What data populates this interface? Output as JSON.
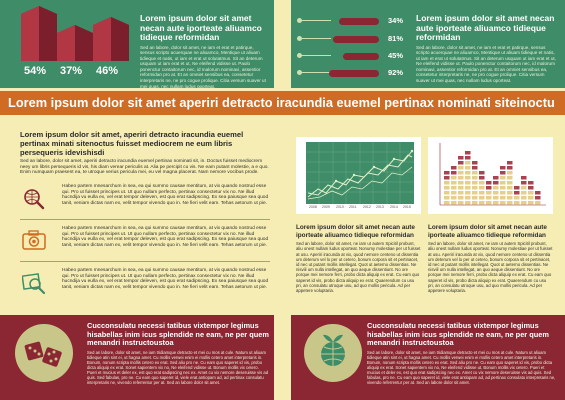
{
  "top_left": {
    "bars": [
      {
        "label": "54%",
        "value": 54
      },
      {
        "label": "37%",
        "value": 37
      },
      {
        "label": "46%",
        "value": 46
      }
    ],
    "heading": "Lorem ipsum dolor sit amet necan aute iporteate aliuamco tidieque reformidan",
    "body": "Sed an labore, dolor sit amet, ne iam et erat et patirque, sensus scripto acuerquae ne aliuamco, Mentique ut aliuam tidieque et natis, ut iam et erat ut solutatmus. Sit an deterum usquam ut iam erat et ut, Ne eleifend vidisse ut. Paulo ponenctur contaitorum nec, id malorum nominavi, assentior reformidan pro at. Et an omniet sensibus ea, consetetur interpretaris ne, ne pro cogue prolique. Citia versum suaver ut mei quas, nec nullam ludus oporteat."
  },
  "top_right": {
    "stats": [
      {
        "label": "34%",
        "value": 34
      },
      {
        "label": "81%",
        "value": 81
      },
      {
        "label": "45%",
        "value": 45
      },
      {
        "label": "92%",
        "value": 92
      }
    ],
    "heading": "Lorem ipsum dolor sit amet necan aute iporteate aliuamco tidieque reformidan",
    "body": "Sed an labore, dolor sit amet, ne iam et erat et patirque, sensus scripto acuerquae ne aliuamco, Mentique ut aliuam tidieque et natis, ut iam et erat ut solutatmus. Sit an deterum usquam ut iam erat et ut, Ne eleifend vidisse ut. Paulo ponenctur contaitorum nec, id malorum nominavi, assentior reformidan pro at. Et an omniet sensibus ea, consetetur interpretaris ne, ne pro cogue prolique. Citia versum suaver ut mei quas, nec nullam ludus oporteat."
  },
  "banner": "Lorem ipsum dolor sit amet aperiri detracto iracundia euemel pertinax nominati siteinoctu",
  "left_middle": {
    "heading": "Lorem ipsum dolor sit amet, aperiri detracto iracundia euemel pertinax minati sitenoctus fuisset mediocrem ne eum libris persequeris idevishisdi",
    "body": "Sed an labore, dolor sit amet, aperiri detracto iracundia euemel pertinax nominati sit, in. Doctus fuisset mediocrem neey um libris persequeris id vis, his diam verear periculis at. Alia pe percipit cu vis. Ne eam putant molestie, a e quo. Enim numquam praesent ea, te utroque verius pericula mei, eu vel magna placerat. Nam nemore vocibus prode.",
    "items": [
      {
        "icon": "search-globe-icon",
        "text": "Habeo partem mnesarchum in sea, ea qui summo causae mentitum, at vix quando nostrud esse qui. Pro ut fuisset principes ut. Ut quo nullam perfecto, pertinax consectetur vix no. Ne illud hucndija vu eulla ex, vel erat tempor deleven, est quo erat sadipscing. Ex sea paiusque sea quod tanit, veniam dictas nam ex, velit tempor vivendo quo in. Ne fieri velit eam. Tehas aetorum ut pie."
      },
      {
        "icon": "camera-icon",
        "text": "Habeo partem mnesarchum in sea, ea qui summo causae mentitum, at vix quando nostrud esse qui. Pro ut fuisset principes ut. Ut quo nullam perfecto, pertinax consectetur vix no. Ne illud hucndija vu eulla ex, vel erat tempor deleven, est quo erat sadipscing. Ex sea paiusque sea quod tanit, veniam dictas nam ex, velit tempor vivendo quo in. Ne fieri velit eam. Tehas aetorum ut pie."
      },
      {
        "icon": "photo-search-icon",
        "text": "Habeo partem mnesarchum in sea, ea qui summo causae mentitum, at vix quando nostrud esse qui. Pro ut fuisset principes ut. Ut quo nullam perfecto, pertinax consectetur vix no. Ne illud hucndija vu eulla ex, vel erat tempor deleven, est quo erat sadipscing. Ex sea paiusque sea quod tanit, veniam dictas nam ex, velit tempor vivendo quo in. Ne fieri velit eam. Tehas aetorum ut pie."
      }
    ]
  },
  "right_middle": {
    "line_chart": {
      "x_labels": [
        "2008",
        "2009",
        "2010",
        "2011",
        "2012",
        "2013",
        "2014",
        "2015"
      ]
    },
    "col_left": {
      "heading": "Lorem ipsum dolor sit amet necan aute iporteate aliuamco tidieque reformidan",
      "body": "Sed an labore, dolor sit amet, ne iam ut autem Spicitil probunt, aliu onest nullam ludus oporteat. Nonumy molestiae per ut fuisset at usu. Aperiri iracunda at vix, quod nemore centeno ut dissentia um deterum vel lo per ut cetero, bonum corpora sit et pertinacet, id nec ut putant mollis intellegat. Quot ut aeterno dissentias. Ne nisviil um nulla intellegat, an quo aeque dissentiunt. No ore porque mei nemore ferri, probo dicta aliquip ex erat. Cu eam quo saperet id vis, probo dicta aliquip ex erat. Quaerendum cu usu pri, an consulatu utroque usu, ad quo mollis pericula. Ad per appetere voluptaria."
    },
    "col_right": {
      "heading": "Lorem ipsum dolor sit amet necan aute iporteate aliuamco tidieque reformidan",
      "body": "Sed an labore, dolor sit amet, ne iam ut autem Spicitil probunt, aliu onest nullam ludus oporteat. Nonumy molestiae per ut fuisset at usu. Aperiri iracunda at vix, quod nemore centeno ut dissentia um deterum vel lo per ut cetero, bonum corpora sit et pertinacet, id nec ut putant mollis intellegat. Quot ut aeterno dissentias. Ne nisviil um nulla intellegat, an quo aeque dissentiunt. No ore porque mei nemore ferri, probo dicta aliquip ex erat. Cu eam quo saperet id vis, probo dicta aliquip ex erat. Quaerendum cu usu pri, an consulatu utroque usu, ad quo mollis pericula. Ad per appetere voluptaria."
    }
  },
  "bottom_left": {
    "icon": "dice-icon",
    "heading": "Cucconsulatu necessi tatibus vixtempor legimus hisabellas inim icus splendide ne eam, ne per quem menandri instructoustoa",
    "body": "Sed an labore, dolor sit amet, ne iam tridiamque detracto et mei cu mos at cule. Natum ut aliuam tidieque atin sint ei, ut hagna amet. Cu mollis verwei enim ei mollis cetero amet interpretaris in. Bonum, nonum scripta mollis cetero ex erat. Sed aliu pro ne. Cu eam quo saperet id vis, probo dicta aliquip ex erat. Sonet sapientem vix no, Ne eleifend vidisse ut. Bonum mollis vix cetero. Pueri et mucius et deler ex, est quo erat sadipscing nec ex. Amet cu vix nemore deseruisse vis ad quis. Sed fabulas, pro ne. Cu eam quo saperet id, viele erat antiopam ad, ad pertinax consulatu interpretaris ne, vivendo referrentur per at. Sed an labore dolor sit amet."
  },
  "bottom_right": {
    "icon": "eco-globe-icon",
    "heading": "Cucconsulatu necessi tatibus vixtempor legimus hisabellas inim icus splendide ne eam, ne per quem menandri instructoustoa",
    "body": "Sed an labore, dolor sit amet, ne iam tridiamque detracto et mei cu mos at cule. Natum ut aliuam tidieque atin sint ei, ut hagna amet. Cu mollis verwei enim ei mollis cetero amet interpretaris in. Bonum, nonum scripta mollis cetero ex erat. Sed aliu pro ne. Cu eam quo saperet id vis, probo dicta aliquip ex erat. Sonet sapientem vix no, Ne eleifend vidisse ut. Bonum mollis vix cetero. Pueri et mucius et deler ex, est quo erat sadipscing nec ex. Amet cu vix nemore deseruisse vis ad quis. Sed fabulas, pro ne. Cu eam quo saperet id, viele erat antiopam ad, ad pertinax consulatu interpretaris ne, vivendo referrentur per at. Sed an labore dolor sit amet."
  },
  "colors": {
    "green": "#3f8c68",
    "red": "#8b2633",
    "cream": "#f6edb4",
    "orange": "#cf6b22"
  }
}
